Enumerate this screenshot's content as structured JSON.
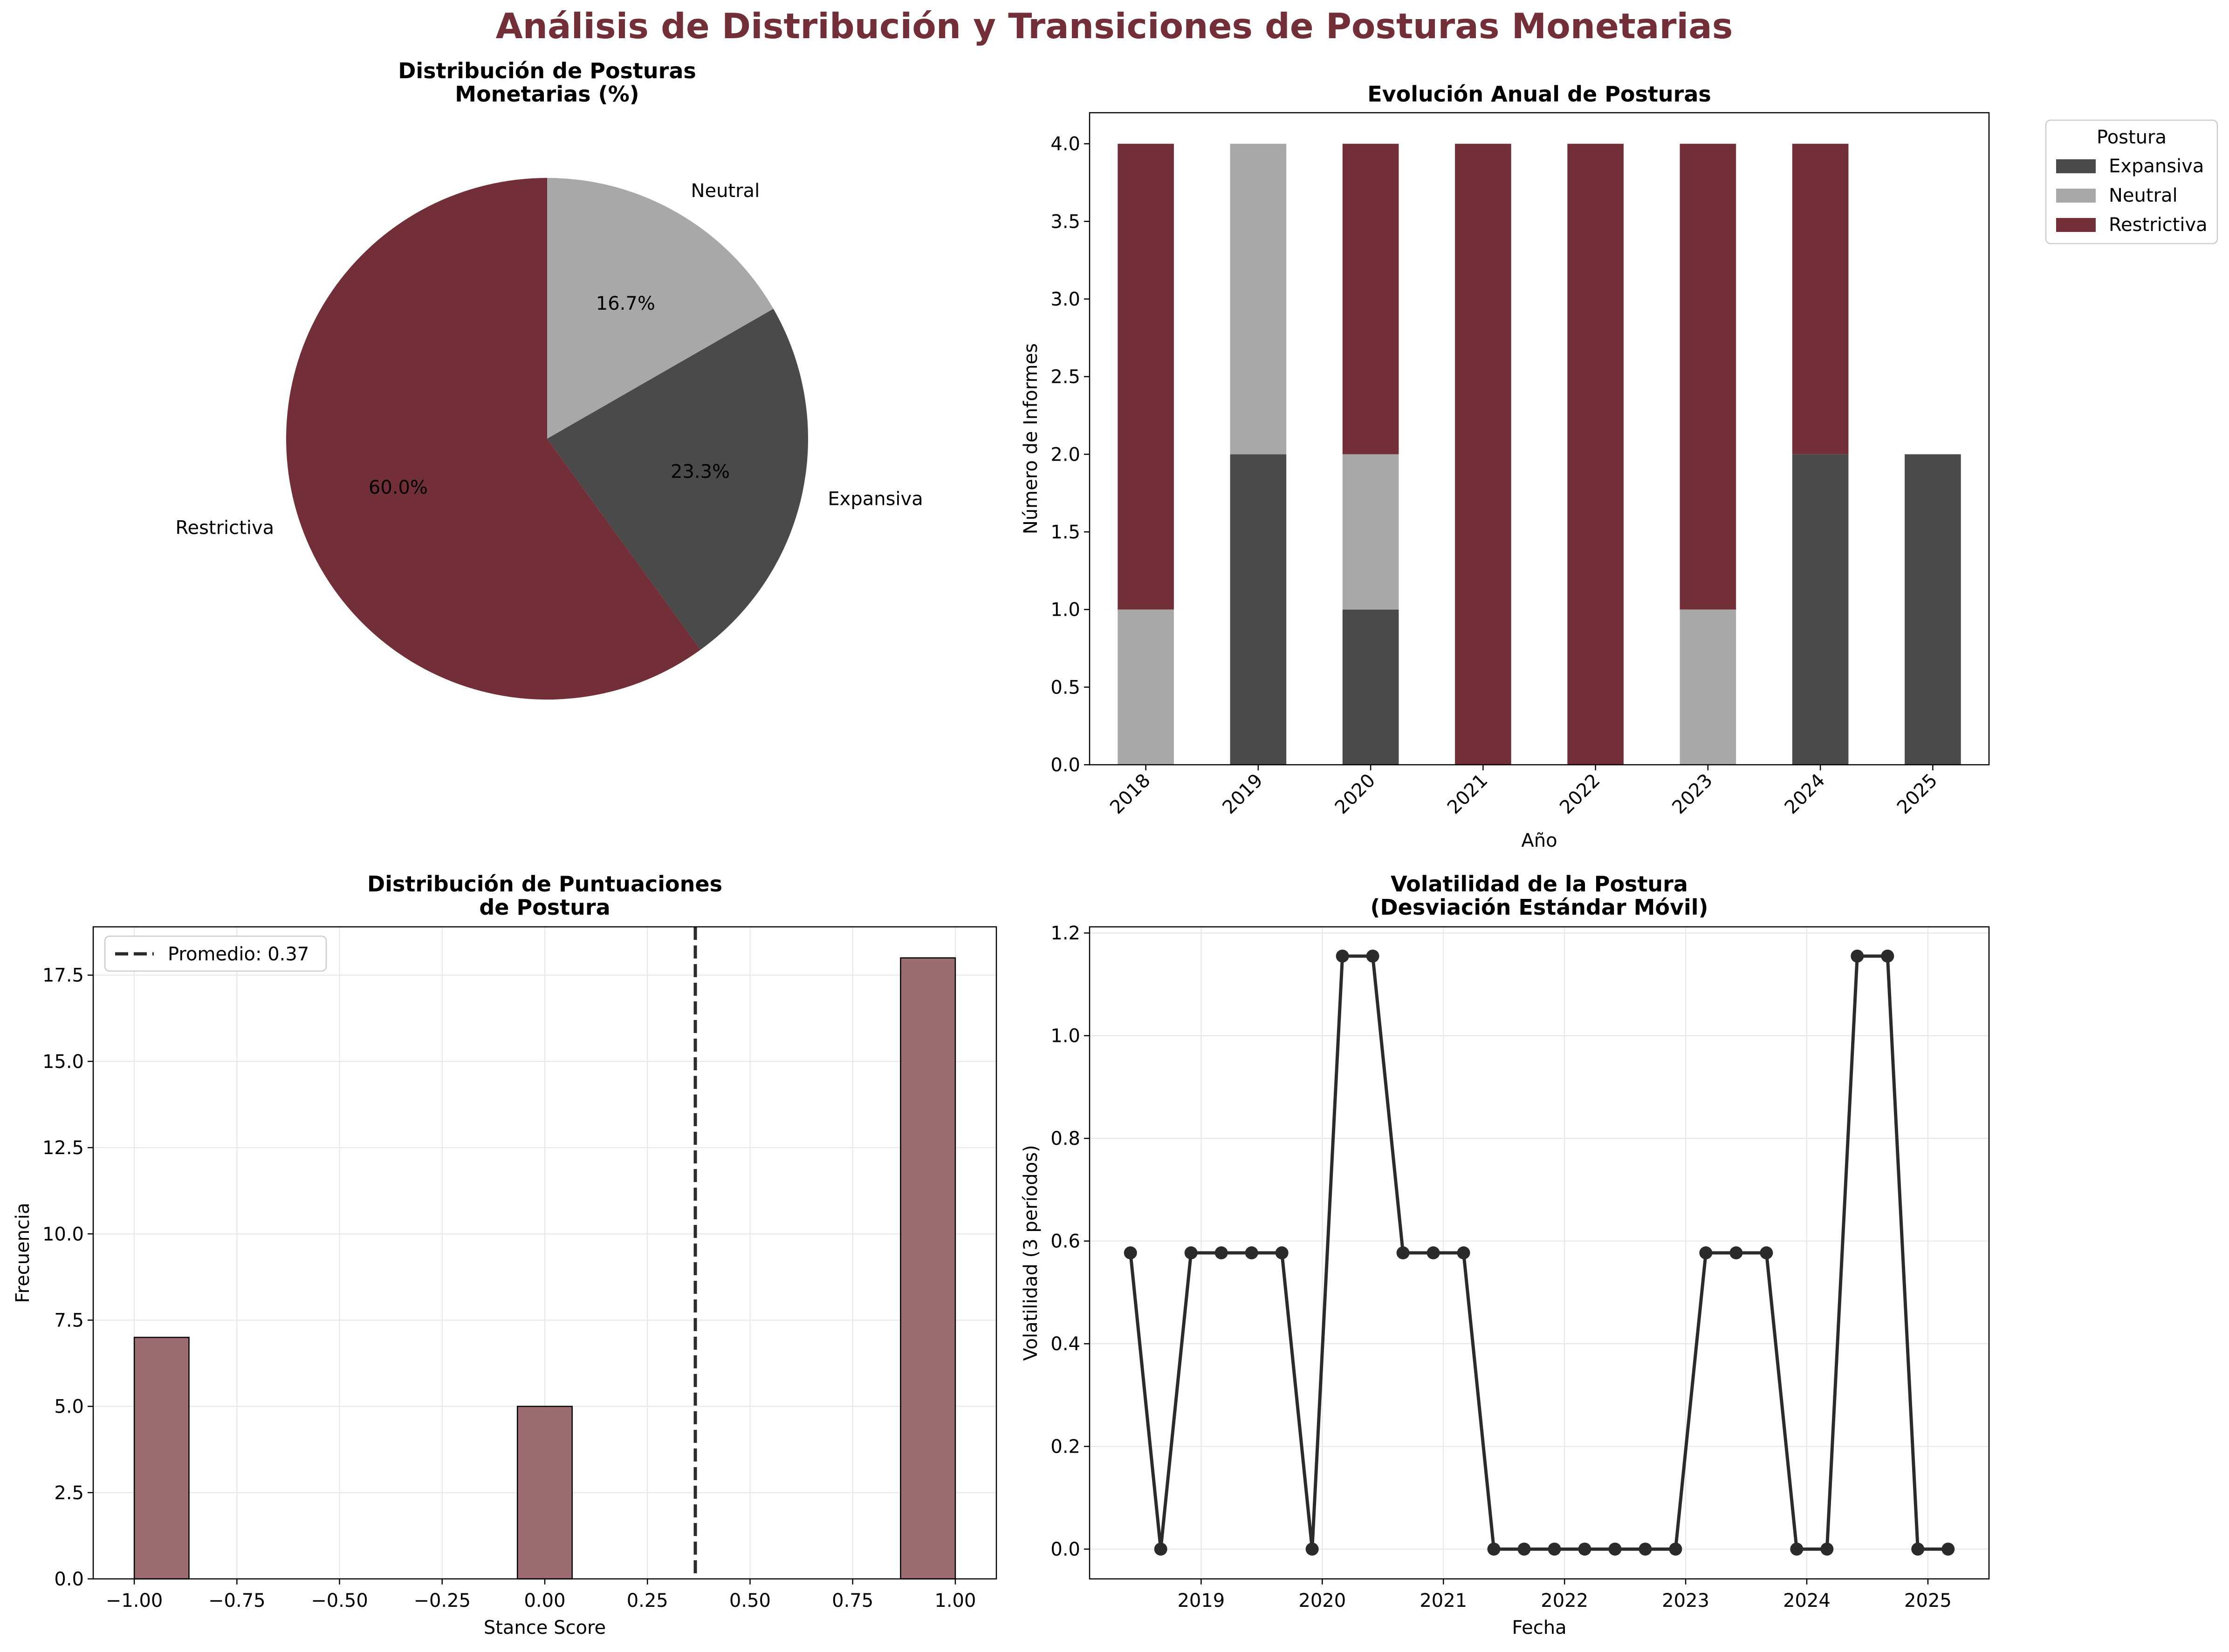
{
  "suptitle": "Análisis de Distribución y Transiciones de Posturas Monetarias",
  "colors": {
    "title": "#722f37",
    "expansiva": "#4a4a4a",
    "neutral": "#a8a8a8",
    "restrictiva": "#722f37",
    "hist_bar": "#9d6c71",
    "line": "#2b2b2b"
  },
  "chart_data": [
    {
      "type": "pie",
      "title": "Distribución de Posturas\nMonetarias (%)",
      "slices": [
        {
          "label": "Neutral",
          "value": 16.7,
          "pct_label": "16.7%"
        },
        {
          "label": "Expansiva",
          "value": 23.3,
          "pct_label": "23.3%"
        },
        {
          "label": "Restrictiva",
          "value": 60.0,
          "pct_label": "60.0%"
        }
      ],
      "start_angle_deg": 90,
      "direction": "clockwise"
    },
    {
      "type": "bar",
      "stacked": true,
      "title": "Evolución Anual de Posturas",
      "xlabel": "Año",
      "ylabel": "Número de Informes",
      "categories": [
        "2018",
        "2019",
        "2020",
        "2021",
        "2022",
        "2023",
        "2024",
        "2025"
      ],
      "series": [
        {
          "name": "Expansiva",
          "values": [
            0,
            2,
            1,
            0,
            0,
            0,
            2,
            2
          ]
        },
        {
          "name": "Neutral",
          "values": [
            1,
            2,
            1,
            0,
            0,
            1,
            0,
            0
          ]
        },
        {
          "name": "Restrictiva",
          "values": [
            3,
            0,
            2,
            4,
            4,
            3,
            2,
            0
          ]
        }
      ],
      "ylim": [
        0,
        4.2
      ],
      "yticks": [
        "0.0",
        "0.5",
        "1.0",
        "1.5",
        "2.0",
        "2.5",
        "3.0",
        "3.5",
        "4.0"
      ],
      "legend": {
        "title": "Postura",
        "placement": "outside upper right"
      },
      "grid": false
    },
    {
      "type": "bar",
      "subtype": "histogram",
      "title": "Distribución de Puntuaciones\nde Postura",
      "xlabel": "Stance Score",
      "ylabel": "Frecuencia",
      "bins": [
        {
          "x0": -1.0,
          "x1": -0.8667,
          "count": 7
        },
        {
          "x0": -0.0667,
          "x1": 0.0667,
          "count": 5
        },
        {
          "x0": 0.8667,
          "x1": 1.0,
          "count": 18
        }
      ],
      "mean_line": {
        "value": 0.3667,
        "label": "Promedio: 0.37"
      },
      "xlim": [
        -1.1,
        1.1
      ],
      "ylim": [
        0,
        18.9
      ],
      "xticks": [
        "−1.00",
        "−0.75",
        "−0.50",
        "−0.25",
        "0.00",
        "0.25",
        "0.50",
        "0.75",
        "1.00"
      ],
      "yticks": [
        "0.0",
        "2.5",
        "5.0",
        "7.5",
        "10.0",
        "12.5",
        "15.0",
        "17.5"
      ],
      "legend": {
        "placement": "top-left"
      },
      "grid": true
    },
    {
      "type": "line",
      "title": "Volatilidad de la Postura\n(Desviación Estándar Móvil)",
      "xlabel": "Fecha",
      "ylabel": "Volatilidad (3 períodos)",
      "x": [
        "2018-06",
        "2018-09",
        "2018-12",
        "2019-03",
        "2019-06",
        "2019-09",
        "2019-12",
        "2020-03",
        "2020-06",
        "2020-09",
        "2020-12",
        "2021-03",
        "2021-06",
        "2021-09",
        "2021-12",
        "2022-03",
        "2022-06",
        "2022-09",
        "2022-12",
        "2023-03",
        "2023-06",
        "2023-09",
        "2023-12",
        "2024-03",
        "2024-06",
        "2024-09",
        "2024-12",
        "2025-03"
      ],
      "values": [
        0.577,
        0.0,
        0.577,
        0.577,
        0.577,
        0.577,
        0.0,
        1.155,
        1.155,
        0.577,
        0.577,
        0.577,
        0.0,
        0.0,
        0.0,
        0.0,
        0.0,
        0.0,
        0.0,
        0.577,
        0.577,
        0.577,
        0.0,
        0.0,
        1.155,
        1.155,
        0.0,
        0.0
      ],
      "xticks": [
        "2019",
        "2020",
        "2021",
        "2022",
        "2023",
        "2024",
        "2025"
      ],
      "yticks": [
        "0.0",
        "0.2",
        "0.4",
        "0.6",
        "0.8",
        "1.0",
        "1.2"
      ],
      "ylim": [
        -0.058,
        1.212
      ],
      "grid": true
    }
  ]
}
